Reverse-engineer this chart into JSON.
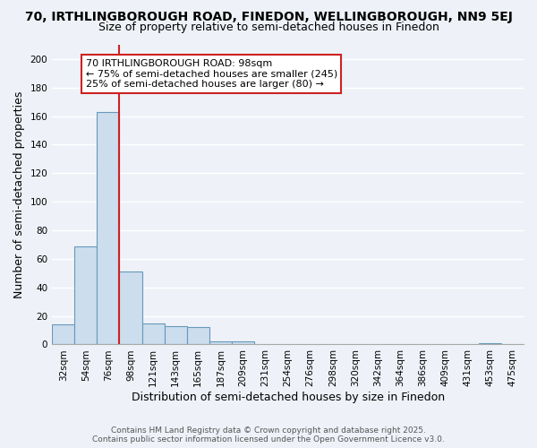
{
  "title_line1": "70, IRTHLINGBOROUGH ROAD, FINEDON, WELLINGBOROUGH, NN9 5EJ",
  "title_line2": "Size of property relative to semi-detached houses in Finedon",
  "xlabel": "Distribution of semi-detached houses by size in Finedon",
  "ylabel": "Number of semi-detached properties",
  "bar_labels": [
    "32sqm",
    "54sqm",
    "76sqm",
    "98sqm",
    "121sqm",
    "143sqm",
    "165sqm",
    "187sqm",
    "209sqm",
    "231sqm",
    "254sqm",
    "276sqm",
    "298sqm",
    "320sqm",
    "342sqm",
    "364sqm",
    "386sqm",
    "409sqm",
    "431sqm",
    "453sqm",
    "475sqm"
  ],
  "bar_values": [
    14,
    69,
    163,
    51,
    15,
    13,
    12,
    2,
    2,
    0,
    0,
    0,
    0,
    0,
    0,
    0,
    0,
    0,
    0,
    1,
    0
  ],
  "bar_color": "#ccdded",
  "bar_edge_color": "#6699bb",
  "vline_color": "#cc2222",
  "annotation_text": "70 IRTHLINGBOROUGH ROAD: 98sqm\n← 75% of semi-detached houses are smaller (245)\n25% of semi-detached houses are larger (80) →",
  "annotation_box_facecolor": "#ffffff",
  "annotation_box_edgecolor": "#cc2222",
  "ylim": [
    0,
    210
  ],
  "yticks": [
    0,
    20,
    40,
    60,
    80,
    100,
    120,
    140,
    160,
    180,
    200
  ],
  "background_color": "#eef2f8",
  "grid_color": "#ffffff",
  "footer_line1": "Contains HM Land Registry data © Crown copyright and database right 2025.",
  "footer_line2": "Contains public sector information licensed under the Open Government Licence v3.0.",
  "title_fontsize": 10,
  "subtitle_fontsize": 9,
  "tick_fontsize": 7.5,
  "axis_label_fontsize": 9,
  "annotation_fontsize": 8
}
